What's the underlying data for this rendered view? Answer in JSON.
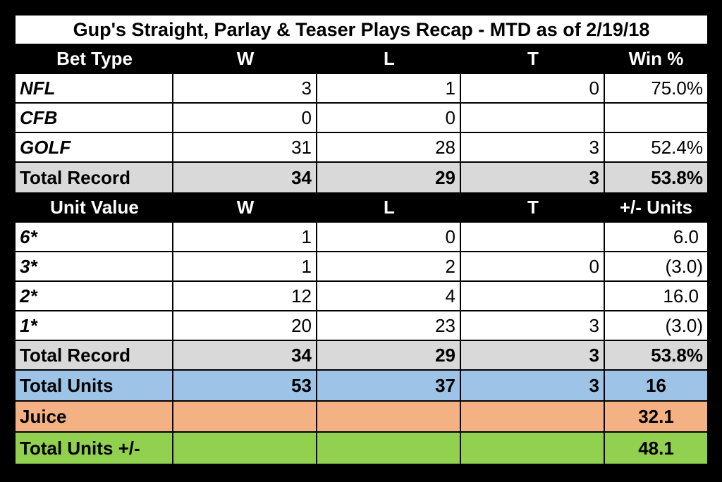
{
  "title": "Gup's Straight, Parlay & Teaser Plays Recap - MTD as of 2/19/18",
  "bet_type_header": [
    "Bet Type",
    "W",
    "L",
    "T",
    "Win %"
  ],
  "bet_type_rows": [
    {
      "label": "NFL",
      "w": "3",
      "l": "1",
      "t": "0",
      "pct": "75.0%"
    },
    {
      "label": "CFB",
      "w": "0",
      "l": "0",
      "t": "",
      "pct": ""
    },
    {
      "label": "GOLF",
      "w": "31",
      "l": "28",
      "t": "3",
      "pct": "52.4%"
    }
  ],
  "bet_type_total": {
    "label": "Total Record",
    "w": "34",
    "l": "29",
    "t": "3",
    "pct": "53.8%"
  },
  "unit_header": [
    "Unit Value",
    "W",
    "L",
    "T",
    "+/- Units"
  ],
  "unit_rows": [
    {
      "label": "6*",
      "w": "1",
      "l": "0",
      "t": "",
      "units": "6.0"
    },
    {
      "label": "3*",
      "w": "1",
      "l": "2",
      "t": "0",
      "units": "(3.0)"
    },
    {
      "label": "2*",
      "w": "12",
      "l": "4",
      "t": "",
      "units": "16.0"
    },
    {
      "label": "1*",
      "w": "20",
      "l": "23",
      "t": "3",
      "units": "(3.0)"
    }
  ],
  "unit_total": {
    "label": "Total Record",
    "w": "34",
    "l": "29",
    "t": "3",
    "pct": "53.8%"
  },
  "total_units": {
    "label": "Total Units",
    "w": "53",
    "l": "37",
    "t": "3",
    "units": "16"
  },
  "juice": {
    "label": "Juice",
    "value": "32.1"
  },
  "total_units_pm": {
    "label": "Total Units +/-",
    "value": "48.1"
  },
  "colors": {
    "background": "#000000",
    "total_row": "#d9d9d9",
    "total_units_row": "#9dc3e6",
    "juice_row": "#f4b183",
    "total_units_pm_row": "#92d050"
  }
}
